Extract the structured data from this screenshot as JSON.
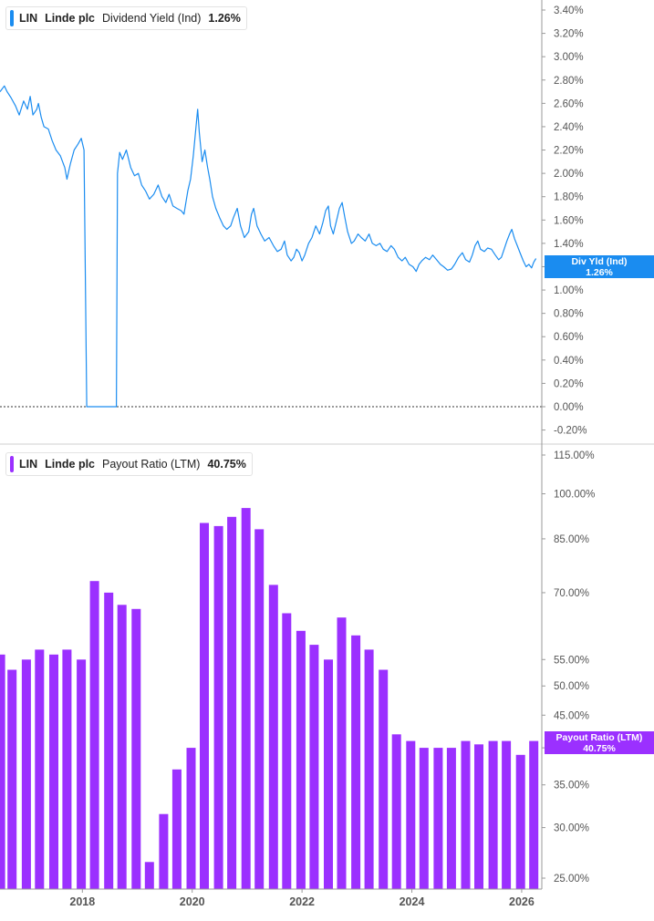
{
  "colors": {
    "yield": "#1a8cf0",
    "payout": "#9b30ff",
    "axis_text": "#555555",
    "zero_line": "#333333"
  },
  "panels": {
    "top": {
      "legend": {
        "ticker": "LIN",
        "company": "Linde plc",
        "metric": "Dividend Yield (Ind)",
        "value": "1.26%"
      },
      "flag": {
        "line1": "Div Yld (Ind)",
        "line2": "1.26%"
      }
    },
    "bottom": {
      "legend": {
        "ticker": "LIN",
        "company": "Linde plc",
        "metric": "Payout Ratio (LTM)",
        "value": "40.75%"
      },
      "flag": {
        "line1": "Payout Ratio (LTM)",
        "line2": "40.75%"
      }
    }
  },
  "x_axis": {
    "ticks": [
      {
        "year": 2018,
        "label": "2018"
      },
      {
        "year": 2020,
        "label": "2020"
      },
      {
        "year": 2022,
        "label": "2022"
      },
      {
        "year": 2024,
        "label": "2024"
      },
      {
        "year": 2026,
        "label": "2026"
      }
    ]
  },
  "chart_data": [
    {
      "type": "line",
      "ylabel": "",
      "xlabel": "",
      "ylim": [
        -0.25,
        3.45
      ],
      "x_range": [
        2016.5,
        2026.3
      ],
      "y_ticks": [
        {
          "value": -0.2,
          "label": "-0.20%"
        },
        {
          "value": 0.0,
          "label": "0.00%"
        },
        {
          "value": 0.2,
          "label": "0.20%"
        },
        {
          "value": 0.4,
          "label": "0.40%"
        },
        {
          "value": 0.6,
          "label": "0.60%"
        },
        {
          "value": 0.8,
          "label": "0.80%"
        },
        {
          "value": 1.0,
          "label": "1.00%"
        },
        {
          "value": 1.2,
          "label": "1.20%"
        },
        {
          "value": 1.4,
          "label": "1.40%"
        },
        {
          "value": 1.6,
          "label": "1.60%"
        },
        {
          "value": 1.8,
          "label": "1.80%"
        },
        {
          "value": 2.0,
          "label": "2.00%"
        },
        {
          "value": 2.2,
          "label": "2.20%"
        },
        {
          "value": 2.4,
          "label": "2.40%"
        },
        {
          "value": 2.6,
          "label": "2.60%"
        },
        {
          "value": 2.8,
          "label": "2.80%"
        },
        {
          "value": 3.0,
          "label": "3.00%"
        },
        {
          "value": 3.2,
          "label": "3.20%"
        },
        {
          "value": 3.4,
          "label": "3.40%"
        }
      ],
      "series": [
        {
          "points": [
            [
              2016.5,
              2.7
            ],
            [
              2016.58,
              2.75
            ],
            [
              2016.63,
              2.7
            ],
            [
              2016.7,
              2.65
            ],
            [
              2016.78,
              2.58
            ],
            [
              2016.85,
              2.5
            ],
            [
              2016.93,
              2.62
            ],
            [
              2017.0,
              2.55
            ],
            [
              2017.05,
              2.66
            ],
            [
              2017.1,
              2.5
            ],
            [
              2017.17,
              2.55
            ],
            [
              2017.2,
              2.6
            ],
            [
              2017.25,
              2.48
            ],
            [
              2017.3,
              2.4
            ],
            [
              2017.38,
              2.38
            ],
            [
              2017.45,
              2.28
            ],
            [
              2017.52,
              2.2
            ],
            [
              2017.6,
              2.15
            ],
            [
              2017.68,
              2.05
            ],
            [
              2017.72,
              1.95
            ],
            [
              2017.78,
              2.08
            ],
            [
              2017.85,
              2.2
            ],
            [
              2017.92,
              2.25
            ],
            [
              2017.98,
              2.3
            ],
            [
              2018.03,
              2.2
            ],
            [
              2018.08,
              0.0
            ],
            [
              2018.25,
              0.0
            ],
            [
              2018.45,
              0.0
            ],
            [
              2018.62,
              0.0
            ],
            [
              2018.64,
              2.0
            ],
            [
              2018.68,
              2.18
            ],
            [
              2018.73,
              2.12
            ],
            [
              2018.8,
              2.2
            ],
            [
              2018.88,
              2.05
            ],
            [
              2018.95,
              1.98
            ],
            [
              2019.02,
              2.0
            ],
            [
              2019.08,
              1.9
            ],
            [
              2019.15,
              1.85
            ],
            [
              2019.22,
              1.78
            ],
            [
              2019.3,
              1.82
            ],
            [
              2019.38,
              1.9
            ],
            [
              2019.45,
              1.8
            ],
            [
              2019.52,
              1.75
            ],
            [
              2019.58,
              1.82
            ],
            [
              2019.65,
              1.72
            ],
            [
              2019.72,
              1.7
            ],
            [
              2019.8,
              1.68
            ],
            [
              2019.85,
              1.65
            ],
            [
              2019.92,
              1.85
            ],
            [
              2019.97,
              1.95
            ],
            [
              2020.02,
              2.15
            ],
            [
              2020.07,
              2.4
            ],
            [
              2020.1,
              2.55
            ],
            [
              2020.13,
              2.35
            ],
            [
              2020.18,
              2.1
            ],
            [
              2020.23,
              2.2
            ],
            [
              2020.28,
              2.05
            ],
            [
              2020.32,
              1.95
            ],
            [
              2020.37,
              1.8
            ],
            [
              2020.43,
              1.7
            ],
            [
              2020.5,
              1.62
            ],
            [
              2020.57,
              1.55
            ],
            [
              2020.63,
              1.52
            ],
            [
              2020.7,
              1.55
            ],
            [
              2020.75,
              1.62
            ],
            [
              2020.82,
              1.7
            ],
            [
              2020.88,
              1.55
            ],
            [
              2020.95,
              1.45
            ],
            [
              2021.03,
              1.5
            ],
            [
              2021.08,
              1.65
            ],
            [
              2021.12,
              1.7
            ],
            [
              2021.18,
              1.55
            ],
            [
              2021.25,
              1.48
            ],
            [
              2021.32,
              1.42
            ],
            [
              2021.4,
              1.45
            ],
            [
              2021.48,
              1.38
            ],
            [
              2021.55,
              1.33
            ],
            [
              2021.62,
              1.35
            ],
            [
              2021.68,
              1.42
            ],
            [
              2021.73,
              1.3
            ],
            [
              2021.8,
              1.25
            ],
            [
              2021.85,
              1.28
            ],
            [
              2021.9,
              1.35
            ],
            [
              2021.95,
              1.32
            ],
            [
              2022.0,
              1.25
            ],
            [
              2022.05,
              1.3
            ],
            [
              2022.12,
              1.4
            ],
            [
              2022.18,
              1.45
            ],
            [
              2022.25,
              1.55
            ],
            [
              2022.32,
              1.48
            ],
            [
              2022.38,
              1.58
            ],
            [
              2022.43,
              1.68
            ],
            [
              2022.48,
              1.72
            ],
            [
              2022.52,
              1.55
            ],
            [
              2022.57,
              1.48
            ],
            [
              2022.63,
              1.6
            ],
            [
              2022.68,
              1.7
            ],
            [
              2022.73,
              1.75
            ],
            [
              2022.78,
              1.62
            ],
            [
              2022.83,
              1.5
            ],
            [
              2022.9,
              1.4
            ],
            [
              2022.95,
              1.42
            ],
            [
              2023.02,
              1.48
            ],
            [
              2023.08,
              1.45
            ],
            [
              2023.15,
              1.42
            ],
            [
              2023.22,
              1.48
            ],
            [
              2023.28,
              1.4
            ],
            [
              2023.35,
              1.38
            ],
            [
              2023.42,
              1.4
            ],
            [
              2023.48,
              1.35
            ],
            [
              2023.55,
              1.33
            ],
            [
              2023.62,
              1.38
            ],
            [
              2023.68,
              1.35
            ],
            [
              2023.75,
              1.28
            ],
            [
              2023.82,
              1.25
            ],
            [
              2023.88,
              1.28
            ],
            [
              2023.95,
              1.22
            ],
            [
              2024.02,
              1.2
            ],
            [
              2024.08,
              1.16
            ],
            [
              2024.13,
              1.22
            ],
            [
              2024.18,
              1.25
            ],
            [
              2024.25,
              1.28
            ],
            [
              2024.32,
              1.26
            ],
            [
              2024.38,
              1.3
            ],
            [
              2024.45,
              1.26
            ],
            [
              2024.52,
              1.22
            ],
            [
              2024.58,
              1.2
            ],
            [
              2024.65,
              1.17
            ],
            [
              2024.72,
              1.18
            ],
            [
              2024.78,
              1.22
            ],
            [
              2024.85,
              1.28
            ],
            [
              2024.92,
              1.32
            ],
            [
              2024.98,
              1.26
            ],
            [
              2025.05,
              1.24
            ],
            [
              2025.1,
              1.3
            ],
            [
              2025.15,
              1.38
            ],
            [
              2025.2,
              1.42
            ],
            [
              2025.25,
              1.35
            ],
            [
              2025.32,
              1.33
            ],
            [
              2025.38,
              1.36
            ],
            [
              2025.45,
              1.35
            ],
            [
              2025.52,
              1.3
            ],
            [
              2025.58,
              1.26
            ],
            [
              2025.63,
              1.28
            ],
            [
              2025.68,
              1.35
            ],
            [
              2025.73,
              1.42
            ],
            [
              2025.78,
              1.48
            ],
            [
              2025.82,
              1.52
            ],
            [
              2025.87,
              1.44
            ],
            [
              2025.92,
              1.38
            ],
            [
              2025.97,
              1.32
            ],
            [
              2026.03,
              1.25
            ],
            [
              2026.08,
              1.2
            ],
            [
              2026.13,
              1.22
            ],
            [
              2026.18,
              1.19
            ],
            [
              2026.22,
              1.24
            ],
            [
              2026.26,
              1.27
            ]
          ]
        }
      ]
    },
    {
      "type": "bar",
      "ylabel": "",
      "xlabel": "",
      "y_scale": "log",
      "ylim": [
        24,
        118
      ],
      "x_range": [
        2016.5,
        2026.3
      ],
      "y_ticks": [
        {
          "value": 25,
          "label": "25.00%"
        },
        {
          "value": 30,
          "label": "30.00%"
        },
        {
          "value": 35,
          "label": "35.00%"
        },
        {
          "value": 40,
          "label": "40%"
        },
        {
          "value": 45,
          "label": "45.00%"
        },
        {
          "value": 50,
          "label": "50.00%"
        },
        {
          "value": 55,
          "label": "55.00%"
        },
        {
          "value": 70,
          "label": "70.00%"
        },
        {
          "value": 85,
          "label": "85.00%"
        },
        {
          "value": 100,
          "label": "100.00%"
        },
        {
          "value": 115,
          "label": "115.00%"
        }
      ],
      "series": [
        {
          "x": [
            2016.51,
            2016.72,
            2016.98,
            2017.22,
            2017.48,
            2017.72,
            2017.98,
            2018.22,
            2018.48,
            2018.72,
            2018.98,
            2019.22,
            2019.48,
            2019.72,
            2019.98,
            2020.22,
            2020.48,
            2020.72,
            2020.98,
            2021.22,
            2021.48,
            2021.72,
            2021.98,
            2022.22,
            2022.48,
            2022.72,
            2022.98,
            2023.22,
            2023.48,
            2023.72,
            2023.98,
            2024.22,
            2024.48,
            2024.72,
            2024.98,
            2025.22,
            2025.48,
            2025.72,
            2025.98,
            2026.22
          ],
          "values": [
            56,
            53,
            55,
            57,
            56,
            57,
            55,
            73,
            70,
            67,
            66,
            26.5,
            31.5,
            37,
            40,
            90,
            89,
            92,
            95,
            88,
            72,
            65,
            61,
            58,
            55,
            64,
            60,
            57,
            53,
            42,
            41,
            40,
            40,
            40,
            41,
            40.5,
            41,
            41,
            39,
            41
          ]
        }
      ]
    }
  ]
}
